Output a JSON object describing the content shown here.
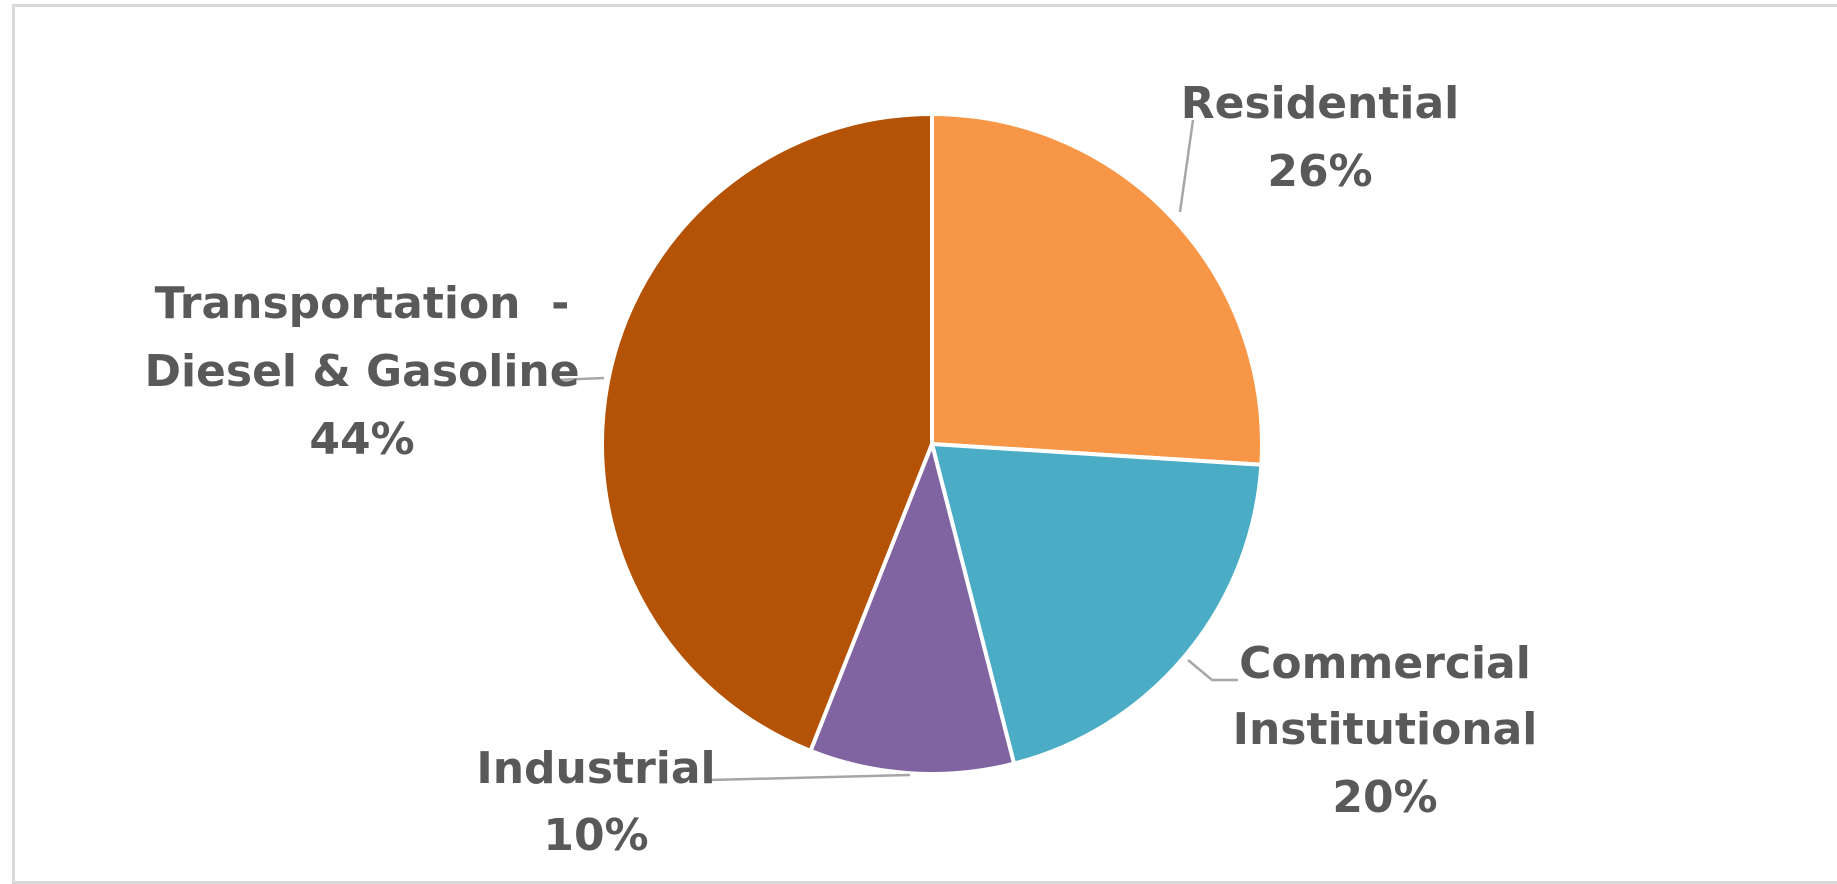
{
  "chart_data": {
    "type": "pie",
    "title": "",
    "slices": [
      {
        "label_lines": [
          "Residential"
        ],
        "percent_label": "26%",
        "value": 26,
        "color": "#f79646"
      },
      {
        "label_lines": [
          "Commercial",
          "Institutional"
        ],
        "percent_label": "20%",
        "value": 20,
        "color": "#4bacc6"
      },
      {
        "label_lines": [
          "Industrial"
        ],
        "percent_label": "10%",
        "value": 10,
        "color": "#8064a2"
      },
      {
        "label_lines": [
          "Transportation  -",
          "Diesel & Gasoline"
        ],
        "percent_label": "44%",
        "value": 44,
        "color": "#b45306"
      }
    ],
    "start_angle": "12 o'clock",
    "direction": "clockwise",
    "legend": "none",
    "data_labels": "outside with leader lines"
  }
}
